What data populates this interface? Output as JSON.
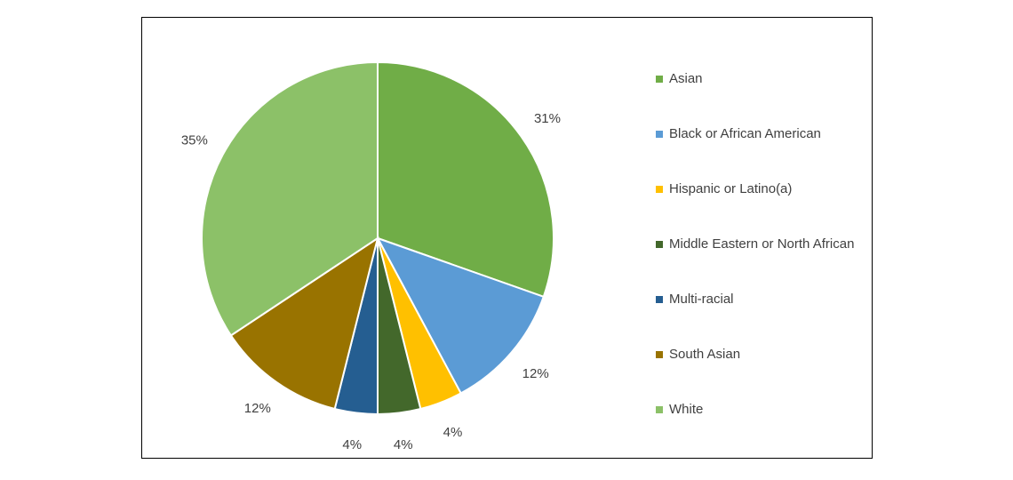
{
  "chart_data": {
    "type": "pie",
    "categories": [
      "Asian",
      "Black or African American",
      "Hispanic or Latino(a)",
      "Middle Eastern or North African",
      "Multi-racial",
      "South Asian",
      "White"
    ],
    "values": [
      31,
      12,
      4,
      4,
      4,
      12,
      35
    ],
    "labels": [
      "31%",
      "12%",
      "4%",
      "4%",
      "4%",
      "12%",
      "35%"
    ],
    "colors": [
      "#70AD47",
      "#5B9BD5",
      "#FFC000",
      "#43682B",
      "#255E91",
      "#997300",
      "#8CC168"
    ],
    "legend_position": "right",
    "title": "",
    "start_angle": "12 o'clock",
    "direction": "clockwise"
  }
}
